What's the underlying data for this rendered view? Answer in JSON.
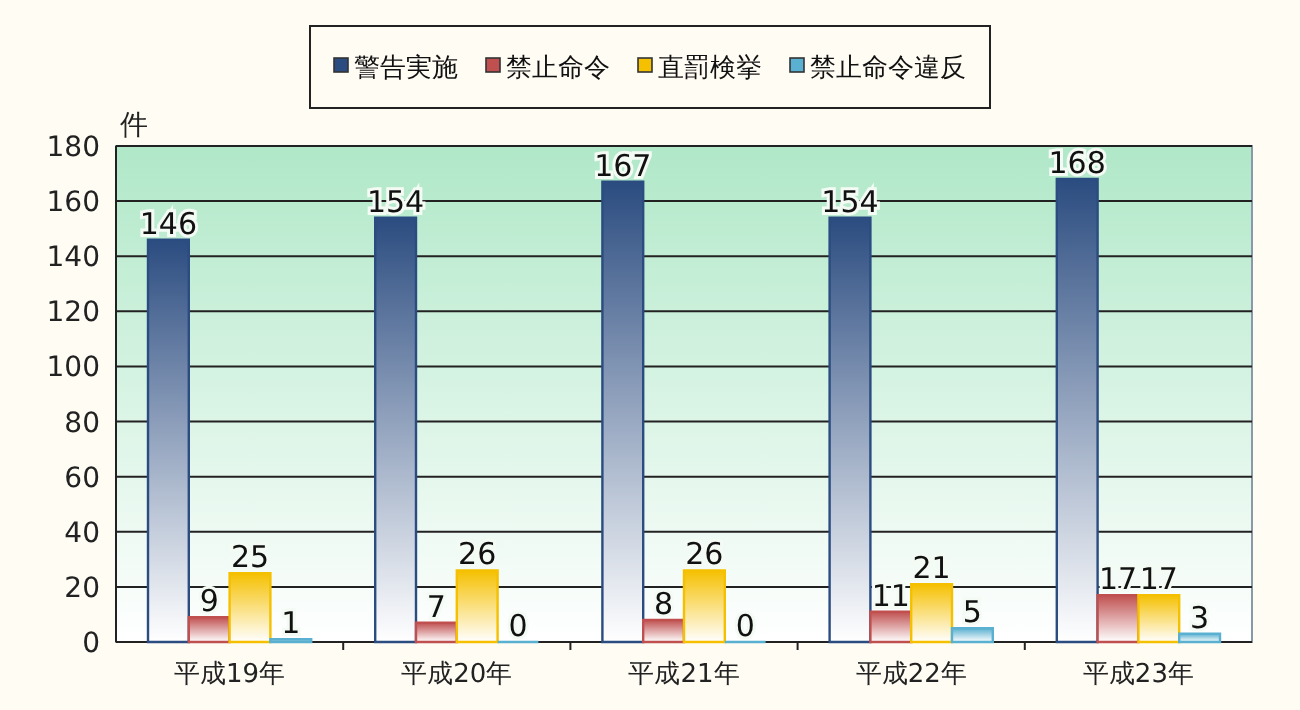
{
  "chart_data": {
    "type": "bar",
    "ylabel": "件",
    "categories": [
      "平成19年",
      "平成20年",
      "平成21年",
      "平成22年",
      "平成23年"
    ],
    "series": [
      {
        "name": "警告実施",
        "color": "#2b4c80",
        "values": [
          146,
          154,
          167,
          154,
          168
        ]
      },
      {
        "name": "禁止命令",
        "color": "#c05050",
        "values": [
          9,
          7,
          8,
          11,
          17
        ]
      },
      {
        "name": "直罰検挙",
        "color": "#f5c000",
        "values": [
          25,
          26,
          26,
          21,
          17
        ]
      },
      {
        "name": "禁止命令違反",
        "color": "#5ab0d0",
        "values": [
          1,
          0,
          0,
          5,
          3
        ]
      }
    ],
    "ylim": [
      0,
      180
    ],
    "yticks": [
      0,
      20,
      40,
      60,
      80,
      100,
      120,
      140,
      160,
      180
    ],
    "grid": "y",
    "legend": "top",
    "data_labels": true
  }
}
